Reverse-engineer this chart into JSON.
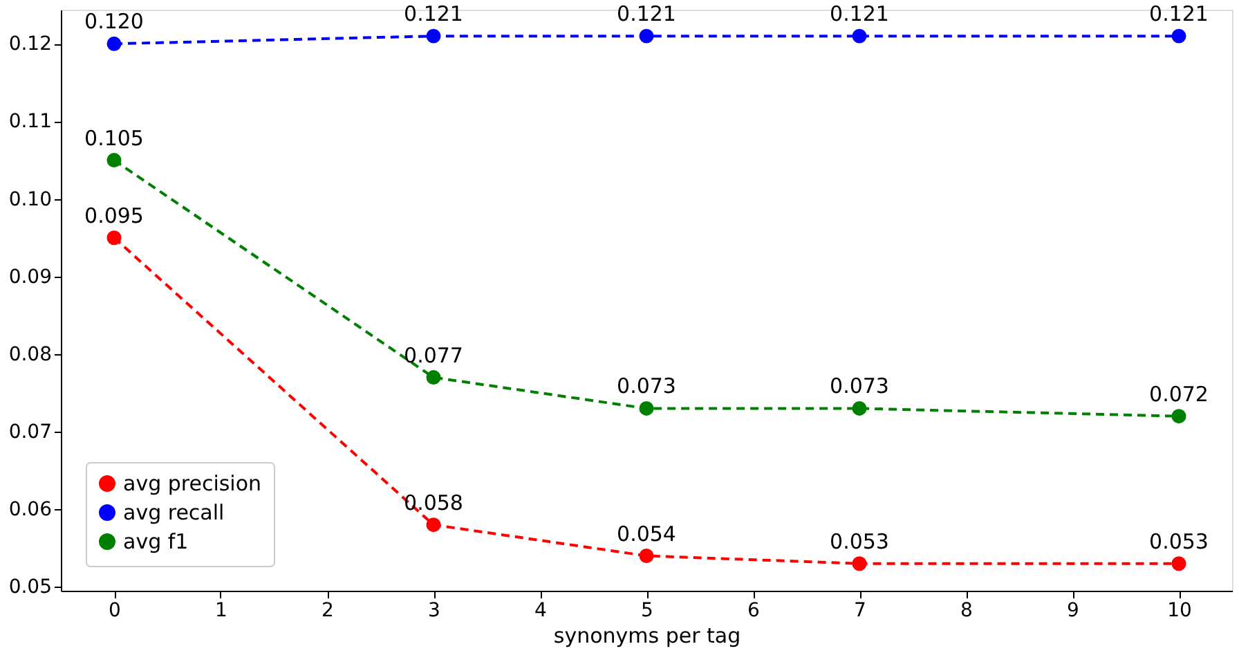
{
  "chart_data": {
    "type": "line",
    "xlabel": "synonyms per tag",
    "x": [
      0,
      3,
      5,
      7,
      10
    ],
    "series": [
      {
        "name": "avg precision",
        "color": "#ff0000",
        "values": [
          0.095,
          0.058,
          0.054,
          0.053,
          0.053
        ],
        "value_labels": [
          "0.095",
          "0.058",
          "0.054",
          "0.053",
          "0.053"
        ]
      },
      {
        "name": "avg recall",
        "color": "#0000ff",
        "values": [
          0.12,
          0.121,
          0.121,
          0.121,
          0.121
        ],
        "value_labels": [
          "0.120",
          "0.121",
          "0.121",
          "0.121",
          "0.121"
        ]
      },
      {
        "name": "avg f1",
        "color": "#008000",
        "values": [
          0.105,
          0.077,
          0.073,
          0.073,
          0.072
        ],
        "value_labels": [
          "0.105",
          "0.077",
          "0.073",
          "0.073",
          "0.072"
        ]
      }
    ],
    "xlim": [
      -0.5,
      10.5
    ],
    "xticks": [
      0,
      1,
      2,
      3,
      4,
      5,
      6,
      7,
      8,
      9,
      10
    ],
    "ylim": [
      0.0495,
      0.1244
    ],
    "yticks": [
      {
        "value": 0.05,
        "label": "0.05"
      },
      {
        "value": 0.06,
        "label": "0.06"
      },
      {
        "value": 0.07,
        "label": "0.07"
      },
      {
        "value": 0.08,
        "label": "0.08"
      },
      {
        "value": 0.09,
        "label": "0.09"
      },
      {
        "value": 0.1,
        "label": "0.10"
      },
      {
        "value": 0.11,
        "label": "0.11"
      },
      {
        "value": 0.12,
        "label": "0.12"
      }
    ],
    "grid": false,
    "legend": "bottom left",
    "marker": "circle",
    "line_style": "dashed"
  }
}
